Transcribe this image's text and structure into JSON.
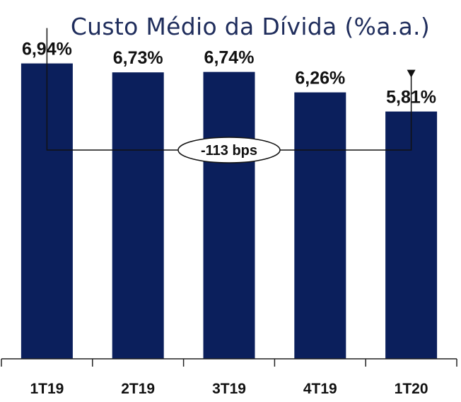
{
  "chart_data": {
    "type": "bar",
    "title": "Custo Médio da Dívida (%a.a.)",
    "categories": [
      "1T19",
      "2T19",
      "3T19",
      "4T19",
      "1T20"
    ],
    "values": [
      6.94,
      6.73,
      6.74,
      6.26,
      5.81
    ],
    "data_labels": [
      "6,94%",
      "6,73%",
      "6,74%",
      "6,26%",
      "5,81%"
    ],
    "xlabel": "",
    "ylabel": "",
    "ylim": [
      0,
      7
    ],
    "grid": false,
    "legend": "none",
    "bar_color": "#0b1f5c",
    "annotation": {
      "text": "-113 bps",
      "from_category": "1T19",
      "to_category": "1T20"
    }
  }
}
